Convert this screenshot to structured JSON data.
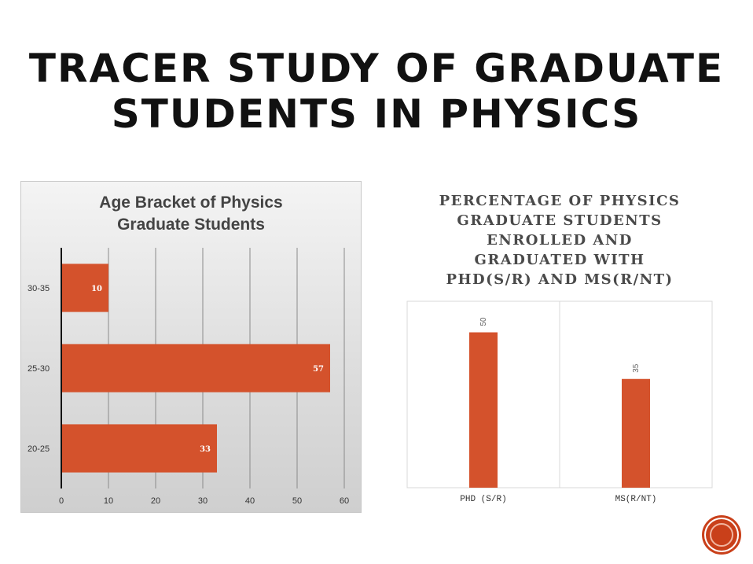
{
  "slide": {
    "title_line1": "TRACER STUDY OF GRADUATE",
    "title_line2": "STUDENTS IN PHYSICS"
  },
  "colors": {
    "bar": "#d4522c",
    "bar_dark": "#c9401a",
    "axis_text": "#333333",
    "grid": "#8a8a8a"
  },
  "chart_data": [
    {
      "type": "bar",
      "orientation": "horizontal",
      "title": "Age Bracket of Physics Graduate Students",
      "title_lines": [
        "Age Bracket of Physics",
        "Graduate Students"
      ],
      "categories": [
        "30-35",
        "25-30",
        "20-25"
      ],
      "values": [
        10,
        57,
        33
      ],
      "data_labels": [
        "10",
        "57",
        "33"
      ],
      "xlim": [
        0,
        60
      ],
      "xticks": [
        0,
        10,
        20,
        30,
        40,
        50,
        60
      ],
      "xtick_labels": [
        "0",
        "10",
        "20",
        "30",
        "40",
        "50",
        "60"
      ],
      "grid": true,
      "legend": "none"
    },
    {
      "type": "bar",
      "orientation": "vertical",
      "title": "PERCENTAGE OF PHYSICS GRADUATE STUDENTS ENROLLED AND GRADUATED WITH PHD(S/R) AND MS(R/NT)",
      "title_lines": [
        "PERCENTAGE OF PHYSICS",
        "GRADUATE STUDENTS",
        "ENROLLED AND",
        "GRADUATED WITH",
        "PHD(S/R) AND MS(R/NT)"
      ],
      "categories": [
        "PHD (S/R)",
        "MS(R/NT)"
      ],
      "values": [
        50,
        35
      ],
      "data_labels": [
        "50",
        "35"
      ],
      "ylim": [
        0,
        60
      ],
      "grid": false,
      "legend": "none"
    }
  ]
}
